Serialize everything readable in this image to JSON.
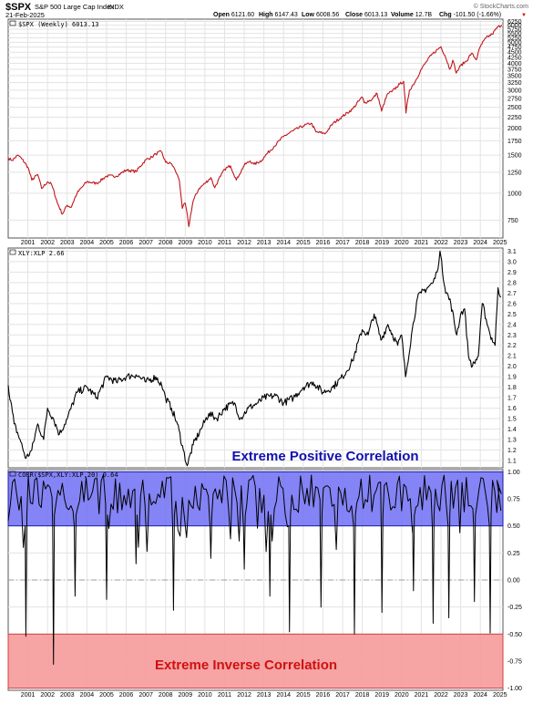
{
  "header": {
    "symbol": "$SPX",
    "name": "S&P 500 Large Cap Index",
    "exchange": "INDX",
    "date": "21-Feb-2025",
    "watermark": "© StockCharts.com",
    "ohlc": [
      {
        "label": "Open",
        "value": "6121.60"
      },
      {
        "label": "High",
        "value": "6147.43"
      },
      {
        "label": "Low",
        "value": "6008.56"
      },
      {
        "label": "Close",
        "value": "6013.13"
      },
      {
        "label": "Volume",
        "value": "12.7B"
      },
      {
        "label": "Chg",
        "value": "-101.50 (-1.66%)"
      }
    ],
    "chg_symbol": "▼"
  },
  "colors": {
    "price_line": "#c0161c",
    "ratio_line": "#000000",
    "corr_line": "#000000",
    "positive_band": "#6e6ef5",
    "positive_band_border": "#1a1aa8",
    "negative_band": "#f59a9a",
    "negative_band_border": "#d04040",
    "positive_text": "#1010b0",
    "negative_text": "#d01010",
    "grid": "#e3e3e3",
    "zero_line": "#888888"
  },
  "chart_data": [
    {
      "type": "line",
      "legend": "$SPX (Weekly) 6013.13",
      "y_scale": "log",
      "ylim": [
        620,
        6400
      ],
      "y_ticks": [
        "6250",
        "6000",
        "5750",
        "5500",
        "5250",
        "5000",
        "4750",
        "4500",
        "4250",
        "4000",
        "3750",
        "3500",
        "3250",
        "3000",
        "2750",
        "2500",
        "2250",
        "2000",
        "1750",
        "1500",
        "1250",
        "1000",
        "750"
      ],
      "x_range": [
        2000.0,
        2025.15
      ],
      "x_ticks": [
        "2001",
        "2002",
        "2003",
        "2004",
        "2005",
        "2006",
        "2007",
        "2008",
        "2009",
        "2010",
        "2011",
        "2012",
        "2013",
        "2014",
        "2015",
        "2016",
        "2017",
        "2018",
        "2019",
        "2020",
        "2021",
        "2022",
        "2023",
        "2024",
        "2025"
      ],
      "x": [
        2000.0,
        2000.2,
        2000.5,
        2000.7,
        2001.0,
        2001.2,
        2001.5,
        2001.7,
        2002.0,
        2002.2,
        2002.5,
        2002.75,
        2003.0,
        2003.2,
        2003.5,
        2004.0,
        2004.5,
        2005.0,
        2005.5,
        2006.0,
        2006.5,
        2007.0,
        2007.3,
        2007.5,
        2007.78,
        2008.0,
        2008.3,
        2008.5,
        2008.7,
        2008.85,
        2009.0,
        2009.18,
        2009.4,
        2009.7,
        2010.0,
        2010.3,
        2010.5,
        2010.8,
        2011.0,
        2011.3,
        2011.6,
        2011.75,
        2012.0,
        2012.3,
        2012.5,
        2012.9,
        2013.0,
        2013.5,
        2014.0,
        2014.5,
        2015.0,
        2015.4,
        2015.65,
        2016.0,
        2016.1,
        2016.5,
        2017.0,
        2017.5,
        2018.0,
        2018.1,
        2018.5,
        2018.75,
        2018.98,
        2019.3,
        2019.5,
        2019.9,
        2020.1,
        2020.22,
        2020.4,
        2020.7,
        2021.0,
        2021.5,
        2021.99,
        2022.2,
        2022.45,
        2022.6,
        2022.78,
        2023.0,
        2023.3,
        2023.55,
        2023.8,
        2024.0,
        2024.3,
        2024.6,
        2024.9,
        2025.1
      ],
      "y": [
        1455,
        1420,
        1500,
        1440,
        1320,
        1150,
        1220,
        1050,
        1130,
        1100,
        900,
        800,
        880,
        860,
        1000,
        1130,
        1110,
        1200,
        1200,
        1280,
        1260,
        1430,
        1470,
        1520,
        1560,
        1390,
        1370,
        1270,
        1150,
        850,
        900,
        700,
        920,
        1050,
        1110,
        1180,
        1060,
        1200,
        1290,
        1340,
        1150,
        1220,
        1350,
        1410,
        1360,
        1420,
        1470,
        1640,
        1830,
        1950,
        2050,
        2110,
        1920,
        1900,
        1880,
        2100,
        2270,
        2450,
        2790,
        2620,
        2720,
        2900,
        2400,
        2900,
        2950,
        3200,
        3300,
        2350,
        3000,
        3300,
        3750,
        4350,
        4770,
        4350,
        3750,
        4130,
        3600,
        3900,
        4100,
        4450,
        4150,
        4780,
        5250,
        5450,
        5900,
        6013
      ],
      "last_value": "6013.13"
    },
    {
      "type": "line",
      "legend": "XLY:XLP 2.66",
      "ylim": [
        1.03,
        3.13
      ],
      "y_ticks": [
        "3.1",
        "3.0",
        "2.9",
        "2.8",
        "2.7",
        "2.6",
        "2.5",
        "2.4",
        "2.3",
        "2.2",
        "2.1",
        "2.0",
        "1.9",
        "1.8",
        "1.7",
        "1.6",
        "1.5",
        "1.4",
        "1.3",
        "1.2",
        "1.1"
      ],
      "x_range": [
        2000.0,
        2025.15
      ],
      "x": [
        2000.0,
        2000.3,
        2000.6,
        2000.9,
        2001.2,
        2001.5,
        2001.8,
        2002.0,
        2002.3,
        2002.6,
        2003.0,
        2003.5,
        2004.0,
        2004.5,
        2005.0,
        2005.5,
        2006.0,
        2006.5,
        2007.0,
        2007.5,
        2007.8,
        2008.0,
        2008.3,
        2008.6,
        2008.9,
        2009.1,
        2009.4,
        2009.8,
        2010.2,
        2010.6,
        2011.0,
        2011.5,
        2011.8,
        2012.2,
        2012.7,
        2013.0,
        2013.6,
        2014.0,
        2014.5,
        2015.0,
        2015.5,
        2016.0,
        2016.5,
        2017.0,
        2017.5,
        2018.0,
        2018.3,
        2018.6,
        2018.95,
        2019.3,
        2019.8,
        2020.0,
        2020.2,
        2020.5,
        2020.8,
        2021.0,
        2021.3,
        2021.6,
        2021.8,
        2021.95,
        2022.2,
        2022.5,
        2022.8,
        2023.0,
        2023.2,
        2023.4,
        2023.6,
        2023.9,
        2024.1,
        2024.3,
        2024.5,
        2024.75,
        2024.9,
        2025.05
      ],
      "y": [
        1.82,
        1.45,
        1.3,
        1.12,
        1.2,
        1.45,
        1.3,
        1.6,
        1.5,
        1.35,
        1.5,
        1.75,
        1.8,
        1.7,
        1.9,
        1.85,
        1.9,
        1.92,
        1.85,
        1.9,
        1.82,
        1.7,
        1.6,
        1.45,
        1.2,
        1.05,
        1.25,
        1.4,
        1.55,
        1.5,
        1.6,
        1.65,
        1.5,
        1.6,
        1.65,
        1.7,
        1.72,
        1.65,
        1.7,
        1.8,
        1.85,
        1.75,
        1.8,
        1.9,
        2.05,
        2.35,
        2.3,
        2.5,
        2.25,
        2.4,
        2.2,
        2.3,
        1.9,
        2.3,
        2.65,
        2.7,
        2.75,
        2.8,
        2.9,
        3.1,
        2.75,
        2.6,
        2.3,
        2.5,
        2.55,
        2.1,
        2.0,
        2.1,
        2.6,
        2.45,
        2.3,
        2.2,
        2.75,
        2.66
      ],
      "last_value": "2.66",
      "annotation": "Extreme Positive Correlation"
    },
    {
      "type": "line",
      "legend": "CORR($SPX,XLY:XLP,20) 0.64",
      "ylim": [
        -1.02,
        1.02
      ],
      "y_ticks": [
        "1.00",
        "0.75",
        "0.50",
        "0.25",
        "0.00",
        "-0.25",
        "-0.50",
        "-0.75",
        "-1.00"
      ],
      "x_range": [
        2000.0,
        2025.15
      ],
      "x_ticks": [
        "2001",
        "2002",
        "2003",
        "2004",
        "2005",
        "2006",
        "2007",
        "2008",
        "2009",
        "2010",
        "2011",
        "2012",
        "2013",
        "2014",
        "2015",
        "2016",
        "2017",
        "2018",
        "2019",
        "2020",
        "2021",
        "2022",
        "2023",
        "2024",
        "2025"
      ],
      "bands": [
        {
          "from": 0.5,
          "to": 1.0,
          "label": "Extreme Positive Correlation"
        },
        {
          "from": -1.0,
          "to": -0.5,
          "label": "Extreme Inverse Correlation"
        }
      ],
      "min_series": [
        {
          "x": 2000.9,
          "y": -0.52
        },
        {
          "x": 2002.3,
          "y": -0.78
        },
        {
          "x": 2003.4,
          "y": -0.15
        },
        {
          "x": 2005.0,
          "y": -0.18
        },
        {
          "x": 2006.5,
          "y": 0.15
        },
        {
          "x": 2008.4,
          "y": -0.28
        },
        {
          "x": 2010.3,
          "y": 0.2
        },
        {
          "x": 2012.0,
          "y": 0.1
        },
        {
          "x": 2013.3,
          "y": -0.15
        },
        {
          "x": 2014.3,
          "y": -0.48
        },
        {
          "x": 2015.9,
          "y": -0.25
        },
        {
          "x": 2017.6,
          "y": -0.5
        },
        {
          "x": 2019.0,
          "y": -0.3
        },
        {
          "x": 2020.6,
          "y": -0.1
        },
        {
          "x": 2021.6,
          "y": -0.4
        },
        {
          "x": 2022.4,
          "y": -0.35
        },
        {
          "x": 2023.7,
          "y": -0.2
        },
        {
          "x": 2024.5,
          "y": -0.49
        }
      ],
      "last_value": "0.64",
      "annotation": "Extreme Inverse Correlation"
    }
  ]
}
